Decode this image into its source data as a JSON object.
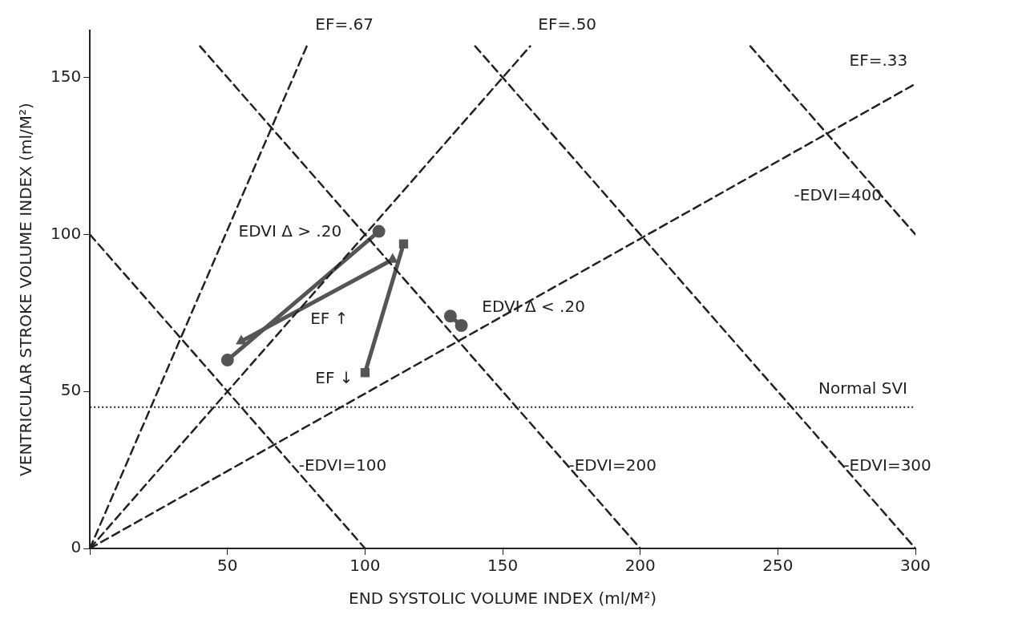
{
  "chart_data": {
    "type": "line",
    "xlabel": "END SYSTOLIC VOLUME INDEX (ml/M²)",
    "ylabel": "VENTRICULAR STROKE VOLUME INDEX (ml/M²)",
    "xlim": [
      0,
      300
    ],
    "ylim": [
      0,
      165
    ],
    "xticks": [
      {
        "value": 0,
        "label": null
      },
      50,
      100,
      150,
      200,
      250,
      300
    ],
    "yticks": [
      0,
      50,
      100,
      150
    ],
    "grid": false,
    "legend": false,
    "series": [
      {
        "color": "#222222",
        "line_style": "dashed",
        "marker": "none",
        "x": [
          0,
          78.8
        ],
        "values": [
          0,
          160
        ]
      },
      {
        "color": "#222222",
        "line_style": "dashed",
        "marker": "none",
        "x": [
          0,
          160
        ],
        "values": [
          0,
          160
        ]
      },
      {
        "color": "#222222",
        "line_style": "dashed",
        "marker": "none",
        "x": [
          0,
          300
        ],
        "values": [
          0,
          148
        ]
      },
      {
        "color": "#222222",
        "line_style": "dashed",
        "marker": "none",
        "x": [
          0,
          100
        ],
        "values": [
          100,
          0
        ]
      },
      {
        "color": "#222222",
        "line_style": "dashed",
        "marker": "none",
        "x": [
          40,
          200
        ],
        "values": [
          160,
          0
        ]
      },
      {
        "color": "#222222",
        "line_style": "dashed",
        "marker": "none",
        "x": [
          140,
          300
        ],
        "values": [
          160,
          0
        ]
      },
      {
        "color": "#222222",
        "line_style": "dashed",
        "marker": "none",
        "x": [
          240,
          300
        ],
        "values": [
          160,
          100
        ]
      },
      {
        "color": "#555555",
        "line_style": "solid",
        "marker": "circle",
        "x": [
          50,
          105
        ],
        "values": [
          60,
          101
        ]
      },
      {
        "color": "#555555",
        "line_style": "solid",
        "marker": "triangle",
        "x": [
          55,
          110
        ],
        "values": [
          66,
          92
        ]
      },
      {
        "color": "#555555",
        "line_style": "solid",
        "marker": "square",
        "x": [
          100,
          114
        ],
        "values": [
          56,
          97
        ]
      },
      {
        "color": "#555555",
        "line_style": "solid",
        "marker": "circle",
        "x": [
          131,
          135
        ],
        "values": [
          74,
          71
        ]
      }
    ],
    "ref_lines": [
      {
        "axis": "y",
        "value": 45,
        "label": "Normal SVI",
        "color": "#222222",
        "line_style": "dotted"
      }
    ],
    "annotations": [
      "EF=.67",
      "EF=.50",
      "EF=.33",
      "-EDVI=100",
      "-EDVI=200",
      "-EDVI=300",
      "-EDVI=400",
      "EDVI Δ > .20",
      "EF ↑",
      "EF ↓",
      "EDVI Δ < .20"
    ]
  }
}
